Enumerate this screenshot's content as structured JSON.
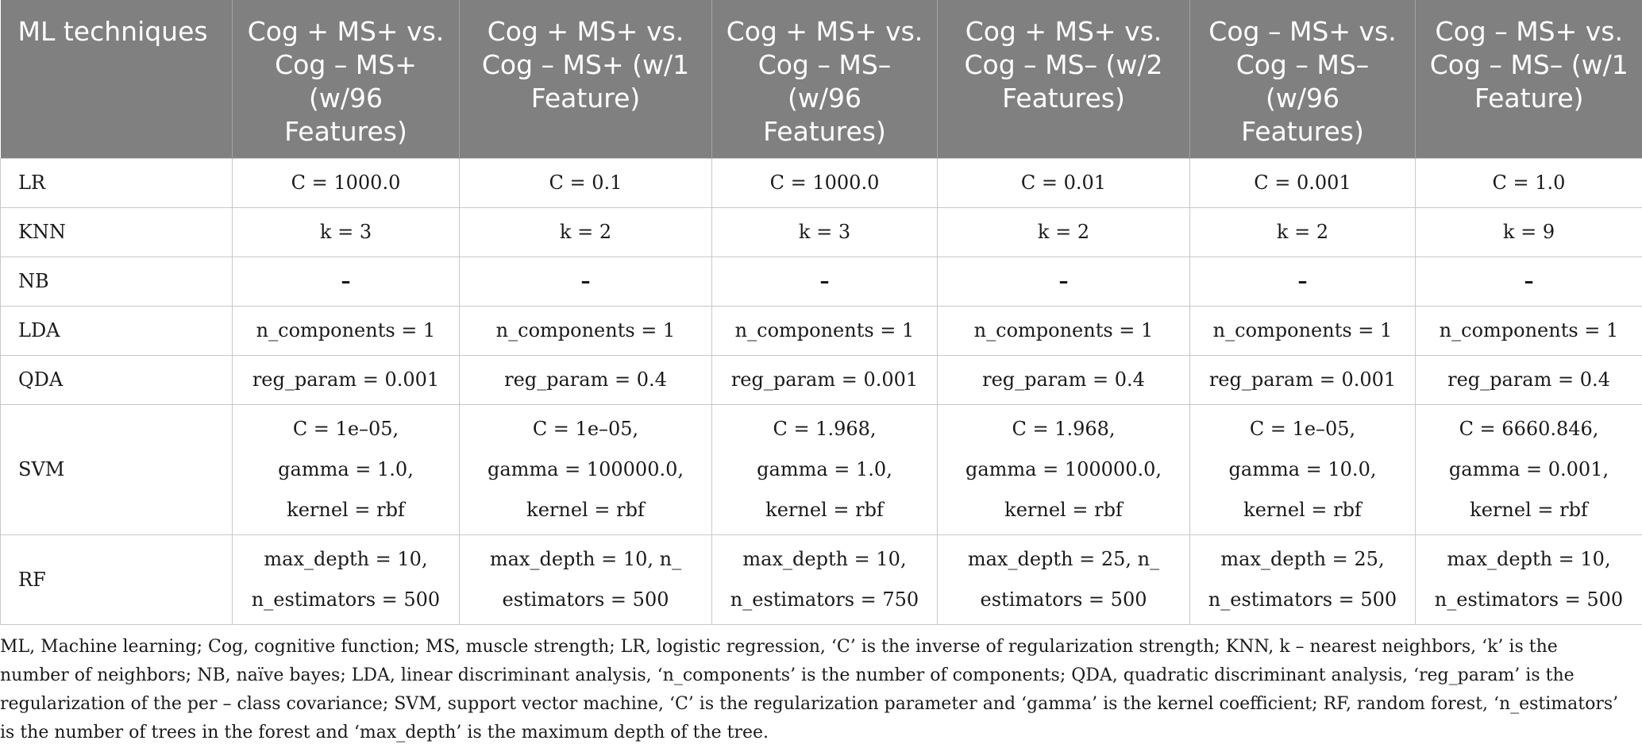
{
  "table": {
    "headers": [
      "ML techniques",
      "Cog + MS+ vs. Cog – MS+ (w/96 Features)",
      "Cog + MS+ vs. Cog – MS+ (w/1 Feature)",
      "Cog + MS+ vs. Cog – MS– (w/96 Features)",
      "Cog + MS+ vs. Cog – MS– (w/2 Features)",
      "Cog – MS+ vs. Cog – MS– (w/96 Features)",
      "Cog – MS+ vs. Cog – MS– (w/1 Feature)"
    ],
    "rows": [
      {
        "technique": "LR",
        "cells": [
          [
            "C = 1000.0"
          ],
          [
            "C = 0.1"
          ],
          [
            "C = 1000.0"
          ],
          [
            "C = 0.01"
          ],
          [
            "C = 0.001"
          ],
          [
            "C = 1.0"
          ]
        ]
      },
      {
        "technique": "KNN",
        "cells": [
          [
            "k = 3"
          ],
          [
            "k = 2"
          ],
          [
            "k = 3"
          ],
          [
            "k = 2"
          ],
          [
            "k = 2"
          ],
          [
            "k = 9"
          ]
        ]
      },
      {
        "technique": "NB",
        "cells": [
          [
            "–"
          ],
          [
            "–"
          ],
          [
            "–"
          ],
          [
            "–"
          ],
          [
            "–"
          ],
          [
            "–"
          ]
        ]
      },
      {
        "technique": "LDA",
        "cells": [
          [
            "n_components = 1"
          ],
          [
            "n_components = 1"
          ],
          [
            "n_components = 1"
          ],
          [
            "n_components = 1"
          ],
          [
            "n_components = 1"
          ],
          [
            "n_components = 1"
          ]
        ]
      },
      {
        "technique": "QDA",
        "cells": [
          [
            "reg_param = 0.001"
          ],
          [
            "reg_param = 0.4"
          ],
          [
            "reg_param = 0.001"
          ],
          [
            "reg_param = 0.4"
          ],
          [
            "reg_param = 0.001"
          ],
          [
            "reg_param = 0.4"
          ]
        ]
      },
      {
        "technique": "SVM",
        "cells": [
          [
            "C = 1e–05,",
            "gamma = 1.0,",
            "kernel = rbf"
          ],
          [
            "C = 1e–05,",
            "gamma = 100000.0,",
            "kernel = rbf"
          ],
          [
            "C = 1.968,",
            "gamma = 1.0,",
            "kernel = rbf"
          ],
          [
            "C = 1.968,",
            "gamma = 100000.0,",
            "kernel = rbf"
          ],
          [
            "C = 1e–05,",
            "gamma = 10.0,",
            "kernel = rbf"
          ],
          [
            "C = 6660.846,",
            "gamma = 0.001,",
            "kernel = rbf"
          ]
        ]
      },
      {
        "technique": "RF",
        "cells": [
          [
            "max_depth = 10,",
            "n_estimators = 500"
          ],
          [
            "max_depth = 10, n_",
            "estimators = 500"
          ],
          [
            "max_depth = 10,",
            "n_estimators = 750"
          ],
          [
            "max_depth = 25, n_",
            "estimators = 500"
          ],
          [
            "max_depth = 25,",
            "n_estimators = 500"
          ],
          [
            "max_depth = 10,",
            "n_estimators = 500"
          ]
        ]
      }
    ]
  },
  "footnote": "ML, Machine learning; Cog, cognitive function; MS, muscle strength; LR, logistic regression, ‘C’ is the inverse of regularization strength; KNN, k – nearest neighbors, ‘k’ is the number of neighbors; NB, naïve bayes; LDA, linear discriminant analysis, ‘n_components’ is the number of components; QDA, quadratic discriminant analysis, ‘reg_param’ is the regularization of the per – class covariance; SVM, support vector machine, ‘C’ is the regularization parameter and ‘gamma’ is the kernel coefficient; RF, random forest, ‘n_estimators’ is the number of trees in the forest and ‘max_depth’ is the maximum depth of the tree.",
  "colors": {
    "header_bg": "#808080",
    "header_text": "#ffffff",
    "grid": "#c8c8c8"
  }
}
